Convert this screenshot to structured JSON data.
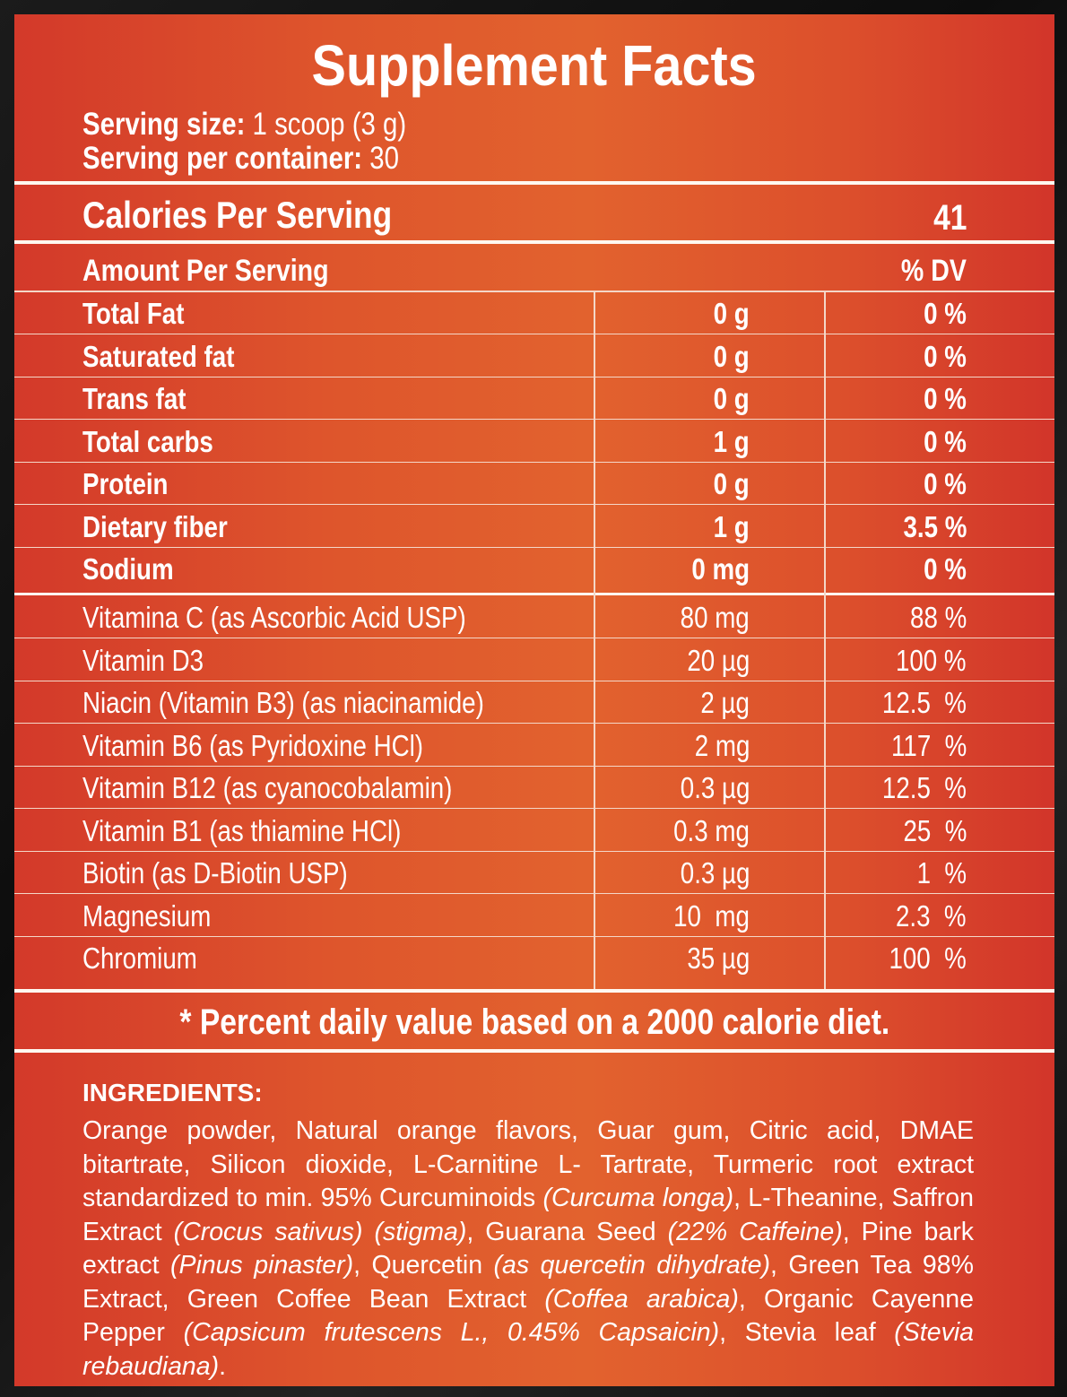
{
  "title": "Supplement Facts",
  "serving": {
    "size_label": "Serving size:",
    "size_value": "1 scoop (3 g)",
    "per_container_label": "Serving per container:",
    "per_container_value": "30"
  },
  "calories": {
    "label": "Calories Per Serving",
    "value": "41"
  },
  "header": {
    "amount_label": "Amount Per Serving",
    "dv_label": "% DV"
  },
  "nutrients": [
    {
      "name": "Total Fat",
      "amount": "0 g",
      "dv": "0 %"
    },
    {
      "name": "Saturated fat",
      "amount": "0 g",
      "dv": "0 %"
    },
    {
      "name": "Trans fat",
      "amount": "0 g",
      "dv": "0 %"
    },
    {
      "name": "Total carbs",
      "amount": "1 g",
      "dv": "0 %"
    },
    {
      "name": "Protein",
      "amount": "0 g",
      "dv": "0 %"
    },
    {
      "name": "Dietary fiber",
      "amount": "1 g",
      "dv": "3.5 %"
    },
    {
      "name": "Sodium",
      "amount": "0 mg",
      "dv": "0 %"
    }
  ],
  "vitamins": [
    {
      "name": "Vitamina C (as Ascorbic Acid USP)",
      "amount": "80 mg",
      "dv": "88 %"
    },
    {
      "name": "Vitamin D3",
      "amount": "20 µg",
      "dv": "100 %"
    },
    {
      "name": "Niacin (Vitamin B3) (as niacinamide)",
      "amount": "2 µg",
      "dv": "12.5  %"
    },
    {
      "name": "Vitamin B6 (as Pyridoxine HCl)",
      "amount": "2 mg",
      "dv": "117  %"
    },
    {
      "name": "Vitamin B12 (as cyanocobalamin)",
      "amount": "0.3 µg",
      "dv": "12.5  %"
    },
    {
      "name": "Vitamin B1 (as thiamine HCl)",
      "amount": "0.3 mg",
      "dv": "25  %"
    },
    {
      "name": "Biotin (as D-Biotin USP)",
      "amount": "0.3 µg",
      "dv": "1  %"
    },
    {
      "name": "Magnesium",
      "amount": "10  mg",
      "dv": "2.3  %"
    },
    {
      "name": "Chromium",
      "amount": "35 µg",
      "dv": "100  %"
    }
  ],
  "footnote": "* Percent daily value based on a 2000 calorie diet.",
  "ingredients": {
    "heading": "INGREDIENTS:",
    "segments": [
      {
        "text": "Orange powder, Natural orange flavors, Guar gum, Citric acid, DMAE bitartrate, Silicon dioxide, L-Carnitine L- Tartrate, Turmeric root extract standardized to min. 95% Curcuminoids ",
        "italic": false
      },
      {
        "text": "(Curcuma longa)",
        "italic": true
      },
      {
        "text": ", L-Theanine, Saffron Extract ",
        "italic": false
      },
      {
        "text": "(Crocus sativus) (stigma)",
        "italic": true
      },
      {
        "text": ", Guarana Seed ",
        "italic": false
      },
      {
        "text": "(22% Caffeine)",
        "italic": true
      },
      {
        "text": ", Pine bark extract ",
        "italic": false
      },
      {
        "text": "(Pinus pinaster)",
        "italic": true
      },
      {
        "text": ", Quercetin ",
        "italic": false
      },
      {
        "text": "(as quercetin dihydrate)",
        "italic": true
      },
      {
        "text": ", Green Tea 98% Extract, Green Coffee Bean Extract ",
        "italic": false
      },
      {
        "text": "(Coffea arabica)",
        "italic": true
      },
      {
        "text": ", Organic Cayenne Pepper ",
        "italic": false
      },
      {
        "text": "(Capsicum frutescens L., 0.45% Capsaicin)",
        "italic": true
      },
      {
        "text": ", Stevia leaf ",
        "italic": false
      },
      {
        "text": "(Stevia rebaudiana)",
        "italic": true
      },
      {
        "text": ".",
        "italic": false
      }
    ]
  }
}
